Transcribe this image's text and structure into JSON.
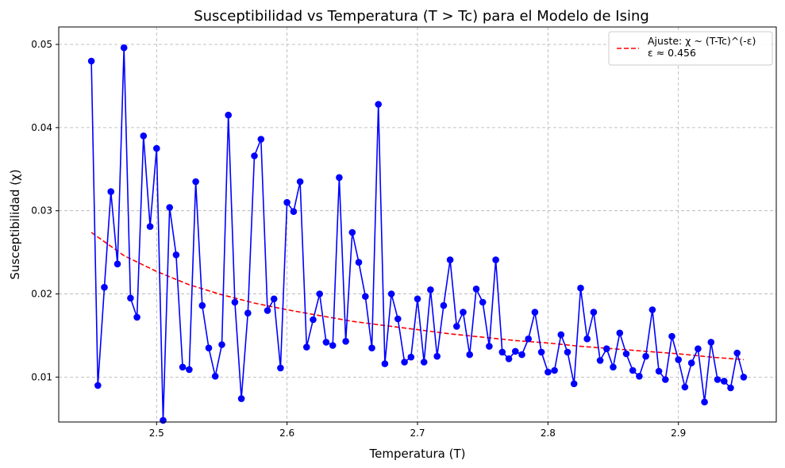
{
  "chart_data": {
    "type": "line",
    "title": "Susceptibilidad vs Temperatura (T > Tc) para el Modelo de Ising",
    "xlabel": "Temperatura (T)",
    "ylabel": "Susceptibilidad (χ)",
    "xlim": [
      2.425,
      2.975
    ],
    "ylim": [
      0.0046,
      0.0521
    ],
    "xticks": [
      2.5,
      2.6,
      2.7,
      2.8,
      2.9
    ],
    "yticks": [
      0.01,
      0.02,
      0.03,
      0.04,
      0.05
    ],
    "grid": true,
    "legend_position": "top-right",
    "colors": {
      "data": "#0000ff",
      "fit": "#ff0000"
    },
    "legend": [
      {
        "label": "Ajuste: χ ~ (T-Tc)^(-ε)\nε ≈ 0.456",
        "style": "dashed",
        "color": "#ff0000"
      }
    ],
    "series": [
      {
        "style": "line-marker",
        "color": "#0000ff",
        "x": [
          2.45,
          2.455,
          2.46,
          2.465,
          2.47,
          2.475,
          2.48,
          2.485,
          2.49,
          2.495,
          2.5,
          2.505,
          2.51,
          2.515,
          2.52,
          2.525,
          2.53,
          2.535,
          2.54,
          2.545,
          2.55,
          2.555,
          2.56,
          2.565,
          2.57,
          2.575,
          2.58,
          2.585,
          2.59,
          2.595,
          2.6,
          2.605,
          2.61,
          2.615,
          2.62,
          2.625,
          2.63,
          2.635,
          2.64,
          2.645,
          2.65,
          2.655,
          2.66,
          2.665,
          2.67,
          2.675,
          2.68,
          2.685,
          2.69,
          2.695,
          2.7,
          2.705,
          2.71,
          2.715,
          2.72,
          2.725,
          2.73,
          2.735,
          2.74,
          2.745,
          2.75,
          2.755,
          2.76,
          2.765,
          2.77,
          2.775,
          2.78,
          2.785,
          2.79,
          2.795,
          2.8,
          2.805,
          2.81,
          2.815,
          2.82,
          2.825,
          2.83,
          2.835,
          2.84,
          2.845,
          2.85,
          2.855,
          2.86,
          2.865,
          2.87,
          2.875,
          2.88,
          2.885,
          2.89,
          2.895,
          2.9,
          2.905,
          2.91,
          2.915,
          2.92,
          2.925,
          2.93,
          2.935,
          2.94,
          2.945,
          2.95
        ],
        "y": [
          0.048,
          0.009,
          0.0208,
          0.0323,
          0.0236,
          0.0496,
          0.0195,
          0.0172,
          0.039,
          0.0281,
          0.0375,
          0.0048,
          0.0304,
          0.0247,
          0.0112,
          0.0109,
          0.0335,
          0.0186,
          0.0135,
          0.0101,
          0.0139,
          0.0415,
          0.019,
          0.0074,
          0.0177,
          0.0366,
          0.0386,
          0.018,
          0.0194,
          0.0111,
          0.031,
          0.0299,
          0.0335,
          0.0136,
          0.0169,
          0.02,
          0.0142,
          0.0138,
          0.034,
          0.0143,
          0.0274,
          0.0238,
          0.0197,
          0.0135,
          0.0428,
          0.0116,
          0.02,
          0.017,
          0.0118,
          0.0124,
          0.0194,
          0.0118,
          0.0205,
          0.0125,
          0.0186,
          0.0241,
          0.0161,
          0.0178,
          0.0127,
          0.0206,
          0.019,
          0.0137,
          0.0241,
          0.013,
          0.0122,
          0.0131,
          0.0127,
          0.0146,
          0.0178,
          0.013,
          0.0106,
          0.0108,
          0.0151,
          0.013,
          0.0092,
          0.0207,
          0.0146,
          0.0178,
          0.012,
          0.0134,
          0.0112,
          0.0153,
          0.0128,
          0.0108,
          0.0101,
          0.0125,
          0.0181,
          0.0107,
          0.0097,
          0.0149,
          0.0121,
          0.0088,
          0.0117,
          0.0134,
          0.007,
          0.0142,
          0.0097,
          0.0095,
          0.0087,
          0.0129,
          0.01
        ]
      },
      {
        "style": "dashed",
        "color": "#ff0000",
        "x": [
          2.45,
          2.475,
          2.5,
          2.525,
          2.55,
          2.575,
          2.6,
          2.625,
          2.65,
          2.675,
          2.7,
          2.725,
          2.75,
          2.775,
          2.8,
          2.825,
          2.85,
          2.875,
          2.9,
          2.925,
          2.95
        ],
        "y": [
          0.0274,
          0.0246,
          0.0227,
          0.0211,
          0.0199,
          0.0189,
          0.0181,
          0.0174,
          0.0167,
          0.0162,
          0.0157,
          0.0152,
          0.0148,
          0.0144,
          0.0141,
          0.0137,
          0.0134,
          0.0131,
          0.0128,
          0.0124,
          0.0121
        ]
      }
    ]
  }
}
